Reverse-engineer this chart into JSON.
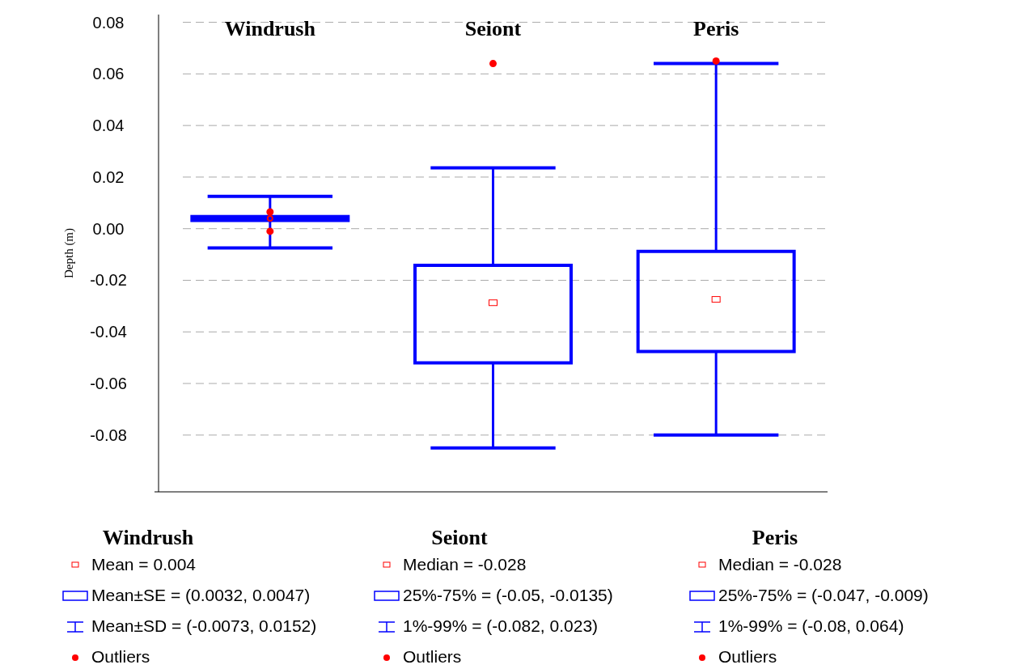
{
  "chart_data": {
    "type": "box",
    "categories": [
      "Windrush",
      "Seiont",
      "Peris"
    ],
    "ylabel": "Depth (m)",
    "boxes": [
      {
        "low": -0.0075,
        "q1": 0.0032,
        "median": 0.004,
        "mean": 0.004,
        "q3": 0.0047,
        "high": 0.0125,
        "outliers": [
          0.0065,
          -0.001
        ]
      },
      {
        "low": -0.085,
        "q1": -0.052,
        "median": -0.0287,
        "q3": -0.0142,
        "high": 0.0236,
        "outliers": [
          0.064
        ]
      },
      {
        "low": -0.08,
        "q1": -0.0476,
        "median": -0.0274,
        "q3": -0.0088,
        "high": 0.064,
        "outliers": [
          0.065
        ]
      }
    ],
    "color": "#0000ff",
    "ylim": [
      -0.102,
      0.083
    ],
    "yticks": [
      {
        "value": -0.08,
        "label": "-0.08"
      },
      {
        "value": -0.06,
        "label": "-0.06"
      },
      {
        "value": -0.04,
        "label": "-0.04"
      },
      {
        "value": -0.02,
        "label": "-0.02"
      },
      {
        "value": 0,
        "label": "0.00"
      },
      {
        "value": 0.02,
        "label": "0.02"
      },
      {
        "value": 0.04,
        "label": "0.04"
      },
      {
        "value": 0.06,
        "label": "0.06"
      },
      {
        "value": 0.08,
        "label": "0.08"
      }
    ],
    "grid": "y",
    "annotations": [
      "Windrush",
      "Mean = 0.004",
      "Mean±SE = (0.0032, 0.0047)",
      "Mean±SD = (-0.0073, 0.0152)",
      "Outliers",
      "Seiont",
      "Median = -0.028",
      "25%-75% = (-0.05, -0.0135)",
      "1%-99% = (-0.082, 0.023)",
      "Outliers",
      "Peris",
      "Median = -0.028",
      "25%-75% = (-0.047, -0.009)",
      "1%-99%  = (-0.08, 0.064)",
      "Outliers"
    ]
  }
}
